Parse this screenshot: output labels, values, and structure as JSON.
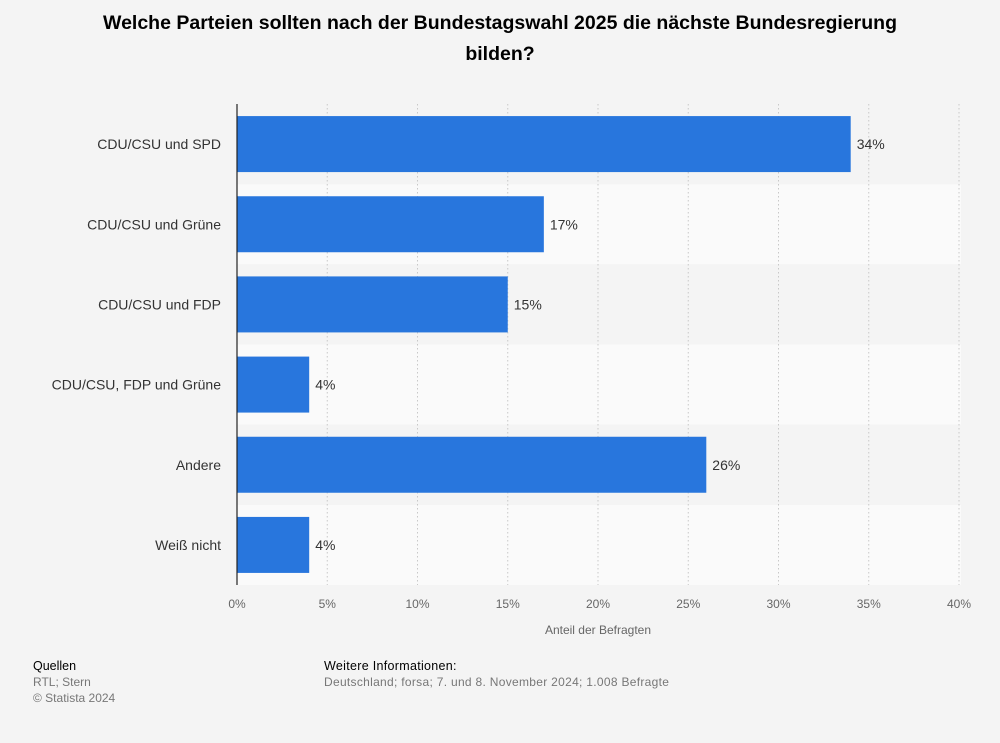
{
  "title": "Welche Parteien sollten nach der Bundestagswahl 2025 die nächste Bundesregierung bilden?",
  "chart_data": {
    "type": "bar",
    "orientation": "horizontal",
    "title": "Welche Parteien sollten nach der Bundestagswahl 2025 die nächste Bundesregierung bilden?",
    "categories": [
      "CDU/CSU und SPD",
      "CDU/CSU und Grüne",
      "CDU/CSU und FDP",
      "CDU/CSU, FDP und Grüne",
      "Andere",
      "Weiß nicht"
    ],
    "values": [
      34,
      17,
      15,
      4,
      26,
      4
    ],
    "value_labels": [
      "34%",
      "17%",
      "15%",
      "4%",
      "26%",
      "4%"
    ],
    "xlabel": "Anteil der Befragten",
    "ylabel": "",
    "xlim": [
      0,
      40
    ],
    "ticks": [
      0,
      5,
      10,
      15,
      20,
      25,
      30,
      35,
      40
    ],
    "tick_labels": [
      "0%",
      "5%",
      "10%",
      "15%",
      "20%",
      "25%",
      "30%",
      "35%",
      "40%"
    ],
    "grid": true,
    "bar_color": "#2876dd"
  },
  "footer": {
    "sources_heading": "Quellen",
    "sources": "RTL; Stern",
    "copyright": "© Statista 2024",
    "info_heading": "Weitere Informationen:",
    "info": "Deutschland; forsa; 7. und 8. November 2024; 1.008 Befragte"
  }
}
